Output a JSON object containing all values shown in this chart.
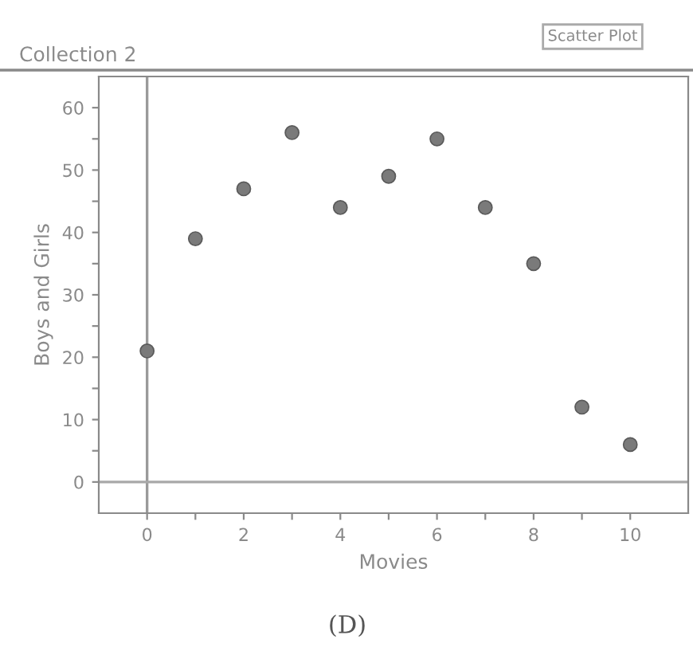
{
  "chart_data": {
    "type": "scatter",
    "title": "Collection 2",
    "xlabel": "Movies",
    "ylabel": "Boys and Girls",
    "x": [
      0,
      1,
      2,
      3,
      4,
      5,
      6,
      7,
      8,
      9,
      10
    ],
    "series": [
      {
        "color": "#7a7a7a",
        "values": [
          21,
          39,
          47,
          56,
          44,
          49,
          55,
          44,
          35,
          12,
          6
        ]
      }
    ],
    "xlim": [
      -1,
      11.2
    ],
    "ylim": [
      -5,
      65
    ],
    "xticks": [
      0,
      {
        "value": 1,
        "label": null
      },
      2,
      {
        "value": 3,
        "label": null
      },
      4,
      {
        "value": 5,
        "label": null
      },
      6,
      {
        "value": 7,
        "label": null
      },
      8,
      {
        "value": 9,
        "label": null
      },
      10
    ],
    "yticks": [
      0,
      {
        "value": 5,
        "label": null
      },
      10,
      {
        "value": 15,
        "label": null
      },
      20,
      {
        "value": 25,
        "label": null
      },
      30,
      {
        "value": 35,
        "label": null
      },
      40,
      {
        "value": 45,
        "label": null
      },
      50,
      {
        "value": 55,
        "label": null
      },
      60
    ],
    "ref_lines": [
      {
        "axis": "x",
        "value": 0,
        "color": "#9a9a9a"
      },
      {
        "axis": "y",
        "value": 0,
        "color": "#a8a8a8"
      }
    ],
    "marker": "circle",
    "grid": false,
    "annotations": [
      "Scatter Plot",
      "(D)"
    ]
  }
}
